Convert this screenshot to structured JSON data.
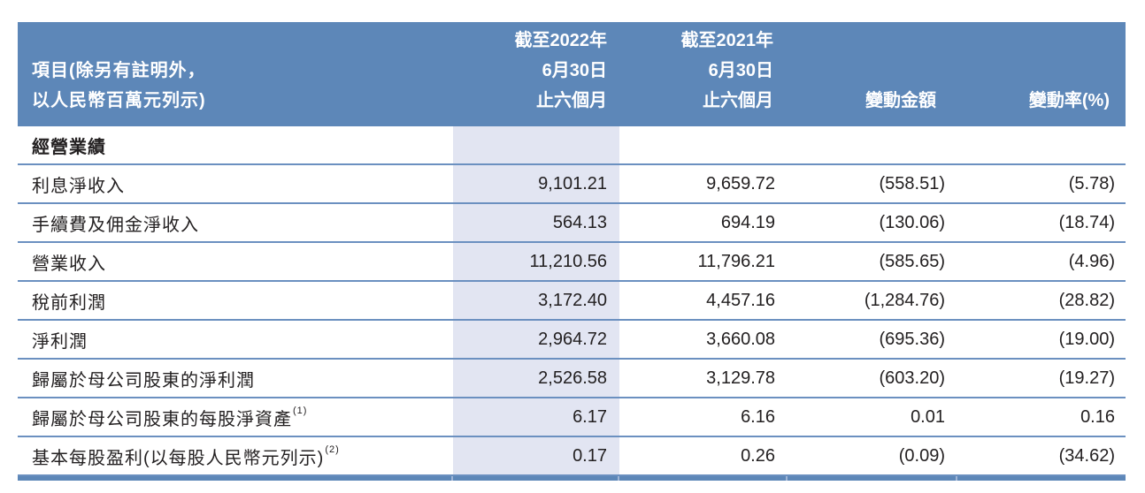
{
  "table": {
    "header": {
      "item_line1": "項目(除另有註明外，",
      "item_line2": "以人民幣百萬元列示)",
      "col_2022": [
        "截至2022年",
        "6月30日",
        "止六個月"
      ],
      "col_2021": [
        "截至2021年",
        "6月30日",
        "止六個月"
      ],
      "col_change_amount": "變動金額",
      "col_change_rate": "變動率(%)"
    },
    "section_title": "經營業績",
    "rows": [
      {
        "label": "利息淨收入",
        "sup": "",
        "v2022": "9,101.21",
        "v2021": "9,659.72",
        "change": "(558.51)",
        "rate": "(5.78)"
      },
      {
        "label": "手續費及佣金淨收入",
        "sup": "",
        "v2022": "564.13",
        "v2021": "694.19",
        "change": "(130.06)",
        "rate": "(18.74)"
      },
      {
        "label": "營業收入",
        "sup": "",
        "v2022": "11,210.56",
        "v2021": "11,796.21",
        "change": "(585.65)",
        "rate": "(4.96)"
      },
      {
        "label": "稅前利潤",
        "sup": "",
        "v2022": "3,172.40",
        "v2021": "4,457.16",
        "change": "(1,284.76)",
        "rate": "(28.82)"
      },
      {
        "label": "淨利潤",
        "sup": "",
        "v2022": "2,964.72",
        "v2021": "3,660.08",
        "change": "(695.36)",
        "rate": "(19.00)"
      },
      {
        "label": "歸屬於母公司股東的淨利潤",
        "sup": "",
        "v2022": "2,526.58",
        "v2021": "3,129.78",
        "change": "(603.20)",
        "rate": "(19.27)"
      },
      {
        "label": "歸屬於母公司股東的每股淨資產",
        "sup": "(1)",
        "v2022": "6.17",
        "v2021": "6.16",
        "change": "0.01",
        "rate": "0.16"
      },
      {
        "label": "基本每股盈利(以每股人民幣元列示)",
        "sup": "(2)",
        "v2022": "0.17",
        "v2021": "0.26",
        "change": "(0.09)",
        "rate": "(34.62)"
      }
    ],
    "colors": {
      "header_bg": "#5d87b8",
      "highlight_column_bg": "#e2e5f2",
      "row_line": "#6b90c0",
      "bottom_bar": "#5d87b8",
      "body_text": "#232021",
      "header_text": "#ffffff"
    }
  }
}
